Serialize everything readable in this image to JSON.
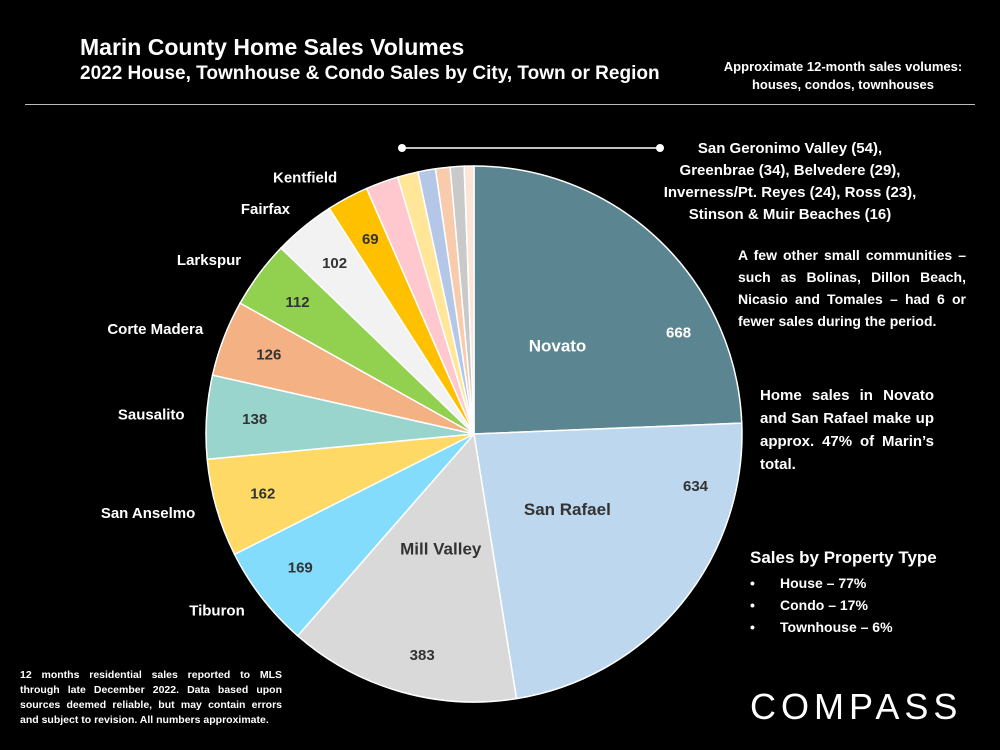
{
  "title": "Marin County Home Sales Volumes",
  "subtitle": "2022 House, Townhouse & Condo Sales by City, Town or Region",
  "note_top": "Approximate 12-month sales volumes: houses, condos, townhouses",
  "small_list": [
    "San Geronimo Valley (54),",
    "Greenbrae (34), Belvedere (29),",
    "Inverness/Pt. Reyes (24), Ross (23),",
    "Stinson & Muir Beaches (16)"
  ],
  "note_small": "A few other small communities – such as Bolinas, Dillon Beach, Nicasio and Tomales – had 6 or fewer sales during the period.",
  "note_novato": "Home sales in Novato and San Rafael make up approx. 47% of Marin’s total.",
  "property_type": {
    "title": "Sales by Property Type",
    "items": [
      "House – 77%",
      "Condo – 17%",
      "Townhouse – 6%"
    ],
    "bullet": "•"
  },
  "footnote": "12 months residential sales reported to MLS through late December 2022. Data based upon sources deemed reliable, but may contain errors and subject to revision. All numbers approximate.",
  "logo": "COMPASS",
  "chart_data": {
    "type": "pie",
    "title": "Marin County Home Sales Volumes",
    "start_angle": "12 o'clock, clockwise",
    "slices": [
      {
        "label": "Novato",
        "value": 668,
        "color": "#5b8591",
        "label_style": "inside"
      },
      {
        "label": "San Rafael",
        "value": 634,
        "color": "#bdd7ee",
        "label_style": "inside"
      },
      {
        "label": "Mill Valley",
        "value": 383,
        "color": "#d9d9d9",
        "label_style": "inside"
      },
      {
        "label": "Tiburon",
        "value": 169,
        "color": "#84dcfd",
        "label_style": "outside"
      },
      {
        "label": "San Anselmo",
        "value": 162,
        "color": "#ffd966",
        "label_style": "outside"
      },
      {
        "label": "Sausalito",
        "value": 138,
        "color": "#99d4cd",
        "label_style": "outside"
      },
      {
        "label": "Corte Madera",
        "value": 126,
        "color": "#f4b183",
        "label_style": "outside"
      },
      {
        "label": "Larkspur",
        "value": 112,
        "color": "#92d050",
        "label_style": "outside"
      },
      {
        "label": "Fairfax",
        "value": 102,
        "color": "#f2f2f2",
        "label_style": "outside"
      },
      {
        "label": "Kentfield",
        "value": 69,
        "color": "#ffc000",
        "label_style": "outside"
      },
      {
        "label": "San Geronimo Valley",
        "value": 54,
        "color": "#ffc7ce",
        "label_style": "grouped"
      },
      {
        "label": "Greenbrae",
        "value": 34,
        "color": "#ffe699",
        "label_style": "grouped"
      },
      {
        "label": "Belvedere",
        "value": 29,
        "color": "#b4c7e7",
        "label_style": "grouped"
      },
      {
        "label": "Inverness/Pt. Reyes",
        "value": 24,
        "color": "#f8cbad",
        "label_style": "grouped"
      },
      {
        "label": "Ross",
        "value": 23,
        "color": "#c9c9c9",
        "label_style": "grouped"
      },
      {
        "label": "Stinson & Muir Beaches",
        "value": 16,
        "color": "#fbe5d6",
        "label_style": "grouped"
      }
    ]
  }
}
